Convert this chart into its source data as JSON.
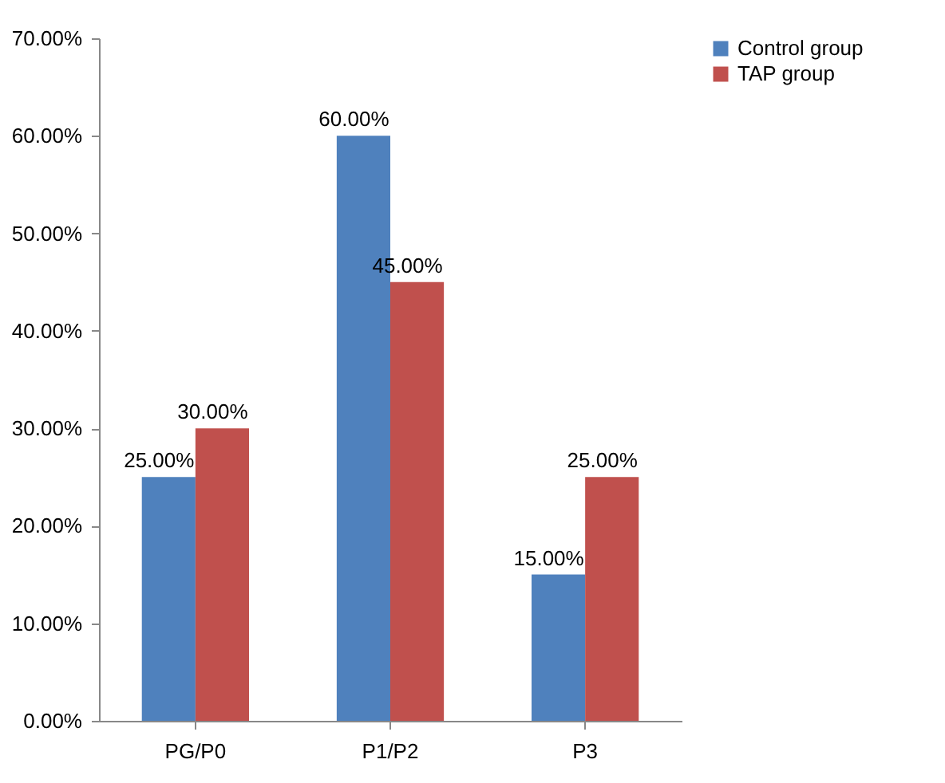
{
  "chart_data": {
    "type": "bar",
    "categories": [
      "PG/P0",
      "P1/P2",
      "P3"
    ],
    "series": [
      {
        "name": "Control group",
        "color": "#4f81bd",
        "values": [
          25,
          60,
          15
        ],
        "value_labels": [
          "25.00%",
          "60.00%",
          "15.00%"
        ]
      },
      {
        "name": "TAP group",
        "color": "#c0504d",
        "values": [
          30,
          45,
          25
        ],
        "value_labels": [
          "30.00%",
          "45.00%",
          "25.00%"
        ]
      }
    ],
    "ylim": [
      0,
      70
    ],
    "yticks": [
      {
        "value": 0,
        "label": "0.00%"
      },
      {
        "value": 10,
        "label": "10.00%"
      },
      {
        "value": 20,
        "label": "20.00%"
      },
      {
        "value": 30,
        "label": "30.00%"
      },
      {
        "value": 40,
        "label": "40.00%"
      },
      {
        "value": 50,
        "label": "50.00%"
      },
      {
        "value": 60,
        "label": "60.00%"
      },
      {
        "value": 70,
        "label": "70.00%"
      }
    ],
    "grid": false,
    "legend": "right"
  }
}
